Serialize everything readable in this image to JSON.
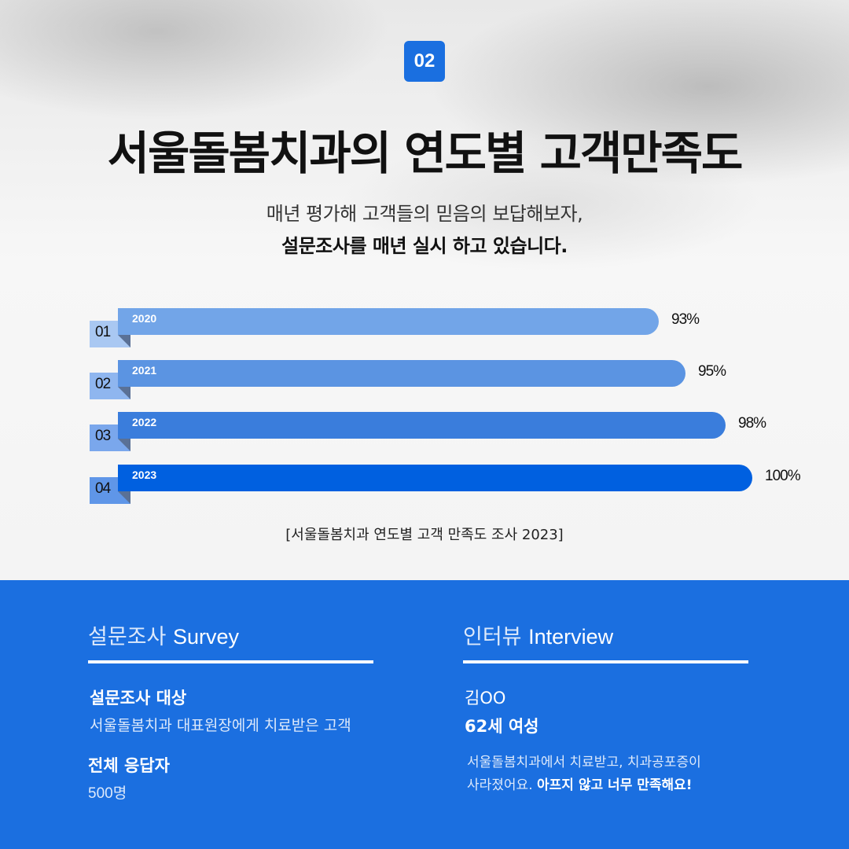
{
  "header": {
    "badge": "02",
    "title": "서울돌봄치과의 연도별 고객만족도",
    "subtitle_line1": "매년 평가해 고객들의 믿음의 보답해보자,",
    "subtitle_line2": "설문조사를 매년 실시 하고 있습니다."
  },
  "chart_data": {
    "type": "bar",
    "orientation": "horizontal",
    "title": "서울돌봄치과의 연도별 고객만족도",
    "caption": "[서울돌봄치과 연도별 고객 만족도 조사 2023]",
    "categories": [
      "2020",
      "2021",
      "2022",
      "2023"
    ],
    "rank_labels": [
      "01",
      "02",
      "03",
      "04"
    ],
    "values": [
      93,
      95,
      98,
      100
    ],
    "value_labels": [
      "93%",
      "95%",
      "98%",
      "100%"
    ],
    "unit": "%",
    "xlabel": "",
    "ylabel": "",
    "grid": false,
    "legend": "none",
    "colors": [
      "#72a5e8",
      "#5b94e2",
      "#3a7ddc",
      "#0060e0"
    ],
    "tab_colors": [
      "#a9c8f2",
      "#8fb6ef",
      "#7aa7ec",
      "#5f96e8"
    ]
  },
  "survey": {
    "heading_ko": "설문조사",
    "heading_en": "Survey",
    "target_label": "설문조사 대상",
    "target_value": "서울돌봄치과 대표원장에게 치료받은 고객",
    "respondents_label": "전체 응답자",
    "respondents_value": "500명"
  },
  "interview": {
    "heading_ko": "인터뷰",
    "heading_en": "Interview",
    "name": "김OO",
    "profile": "62세 여성",
    "quote_line1": "서울돌봄치과에서 치료받고, 치과공포증이",
    "quote_line2_plain": "사라졌어요. ",
    "quote_line2_bold": "아프지 않고 너무 만족해요!"
  },
  "colors": {
    "accent": "#1b6fe0",
    "badge": "#1a6fe0"
  }
}
